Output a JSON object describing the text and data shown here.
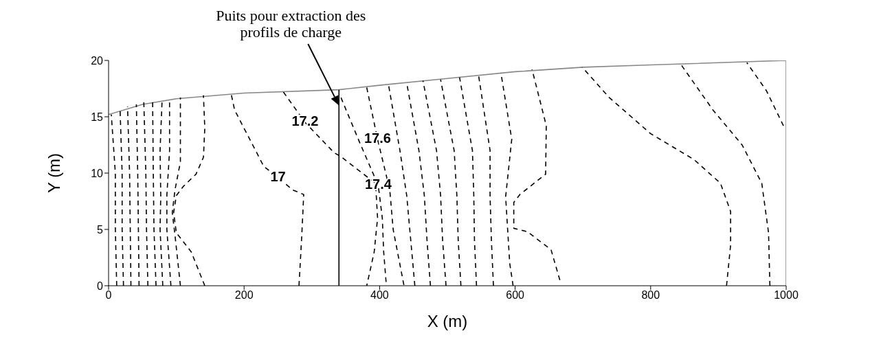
{
  "chart_data": {
    "type": "line",
    "xlabel": "X (m)",
    "ylabel": "Y (m)",
    "xlim": [
      0,
      1000
    ],
    "ylim": [
      0,
      20
    ],
    "xticks": [
      0,
      200,
      400,
      600,
      800,
      1000
    ],
    "yticks": [
      0,
      5,
      10,
      15,
      20
    ],
    "grid": false,
    "marker": "none",
    "annotations": [
      "Puits pour extraction des profils de charge",
      {
        "text": "17",
        "x": 250,
        "y": 9.6
      },
      {
        "text": "17.2",
        "x": 290,
        "y": 14.5
      },
      {
        "text": "17.6",
        "x": 397,
        "y": 13
      },
      {
        "text": "17.4",
        "x": 398,
        "y": 8.9
      }
    ],
    "series": [
      {
        "type": "line",
        "color": "#888888",
        "line_style": "solid",
        "x": [
          0,
          50,
          100,
          200,
          340,
          400,
          500,
          600,
          700,
          800,
          1000,
          1000
        ],
        "values": [
          15.2,
          16.1,
          16.6,
          17.1,
          17.4,
          17.8,
          18.4,
          19,
          19.4,
          19.6,
          20,
          0
        ]
      },
      {
        "type": "line",
        "color": "#000000",
        "line_style": "solid",
        "x": [
          340,
          340
        ],
        "values": [
          0,
          17.4
        ]
      },
      {
        "type": "line",
        "color": "#000000",
        "line_style": "dashed",
        "x": [
          12,
          10,
          10,
          4
        ],
        "values": [
          0,
          5,
          10,
          15.2
        ]
      },
      {
        "type": "line",
        "color": "#000000",
        "line_style": "dashed",
        "x": [
          22,
          20,
          20,
          17
        ],
        "values": [
          0,
          5,
          10,
          15.6
        ]
      },
      {
        "type": "line",
        "color": "#000000",
        "line_style": "dashed",
        "x": [
          33,
          32,
          31,
          28
        ],
        "values": [
          0,
          5,
          10,
          15.9
        ]
      },
      {
        "type": "line",
        "color": "#000000",
        "line_style": "dashed",
        "x": [
          45,
          44,
          43,
          41
        ],
        "values": [
          0,
          5,
          10,
          16.1
        ]
      },
      {
        "type": "line",
        "color": "#000000",
        "line_style": "dashed",
        "x": [
          58,
          56,
          55,
          52
        ],
        "values": [
          0,
          5,
          10,
          16.3
        ]
      },
      {
        "type": "line",
        "color": "#000000",
        "line_style": "dashed",
        "x": [
          70,
          67,
          66,
          65
        ],
        "values": [
          0,
          5,
          10,
          16.4
        ]
      },
      {
        "type": "line",
        "color": "#000000",
        "line_style": "dashed",
        "x": [
          80,
          76,
          77,
          76,
          79
        ],
        "values": [
          0,
          5,
          8,
          12,
          16.5
        ]
      },
      {
        "type": "line",
        "color": "#000000",
        "line_style": "dashed",
        "x": [
          92,
          86,
          86,
          90,
          90
        ],
        "values": [
          0,
          5,
          8,
          12,
          16.6
        ]
      },
      {
        "type": "line",
        "color": "#000000",
        "line_style": "dashed",
        "x": [
          106,
          98,
          94,
          98,
          106,
          106
        ],
        "values": [
          0,
          4.5,
          6.5,
          8.5,
          11,
          16.7
        ]
      },
      {
        "type": "line",
        "color": "#000000",
        "line_style": "dashed",
        "x": [
          142,
          122,
          100,
          96,
          100,
          110,
          129,
          140,
          142,
          140
        ],
        "values": [
          0,
          3,
          4.7,
          6.5,
          8,
          8.8,
          9.9,
          11.4,
          14,
          16.9
        ]
      },
      {
        "type": "line",
        "color": "#000000",
        "line_style": "dashed",
        "x": [
          281,
          285,
          288,
          272,
          250,
          229,
          186,
          181
        ],
        "values": [
          0,
          4.3,
          8.1,
          8.5,
          9.6,
          10.6,
          15.6,
          17
        ]
      },
      {
        "type": "line",
        "color": "#000000",
        "line_style": "dashed",
        "x": [
          258,
          290,
          333,
          342,
          370,
          394,
          397,
          392,
          381
        ],
        "values": [
          17.2,
          14.5,
          11.8,
          11.5,
          10.2,
          9.1,
          6,
          3,
          0
        ]
      },
      {
        "type": "line",
        "color": "#000000",
        "line_style": "dashed",
        "x": [
          343,
          370,
          398,
          404,
          406,
          410
        ],
        "values": [
          16.7,
          12.8,
          8.9,
          6,
          3,
          0
        ]
      },
      {
        "type": "line",
        "color": "#000000",
        "line_style": "dashed",
        "x": [
          381,
          397,
          415,
          420,
          436
        ],
        "values": [
          17.6,
          13,
          8.5,
          5,
          0
        ]
      },
      {
        "type": "line",
        "color": "#000000",
        "line_style": "dashed",
        "x": [
          452,
          446,
          440,
          430,
          413
        ],
        "values": [
          0,
          4,
          8,
          12,
          17.9
        ]
      },
      {
        "type": "line",
        "color": "#000000",
        "line_style": "dashed",
        "x": [
          475,
          470,
          466,
          458,
          440
        ],
        "values": [
          0,
          4,
          8,
          12,
          18
        ]
      },
      {
        "type": "line",
        "color": "#000000",
        "line_style": "dashed",
        "x": [
          498,
          493,
          490,
          484,
          464
        ],
        "values": [
          0,
          4,
          8,
          12,
          18.2
        ]
      },
      {
        "type": "line",
        "color": "#000000",
        "line_style": "dashed",
        "x": [
          520,
          516,
          514,
          510,
          490
        ],
        "values": [
          0,
          4,
          8,
          12,
          18.3
        ]
      },
      {
        "type": "line",
        "color": "#000000",
        "line_style": "dashed",
        "x": [
          543,
          540,
          539,
          537,
          518
        ],
        "values": [
          0,
          4,
          8,
          12,
          18.5
        ]
      },
      {
        "type": "line",
        "color": "#000000",
        "line_style": "dashed",
        "x": [
          568,
          565,
          563,
          563,
          546
        ],
        "values": [
          0,
          4,
          8,
          12,
          18.7
        ]
      },
      {
        "type": "line",
        "color": "#000000",
        "line_style": "dashed",
        "x": [
          597,
          592,
          586,
          595,
          579
        ],
        "values": [
          0,
          2,
          7.9,
          13,
          18.9
        ]
      },
      {
        "type": "line",
        "color": "#000000",
        "line_style": "dashed",
        "x": [
          666,
          653,
          618,
          598,
          598,
          607,
          645,
          646,
          625
        ],
        "values": [
          0.5,
          3.2,
          4.8,
          5.1,
          7.4,
          8.1,
          9.9,
          14.2,
          19.2
        ]
      },
      {
        "type": "line",
        "color": "#000000",
        "line_style": "dashed",
        "x": [
          912,
          918,
          918,
          903,
          864,
          800,
          739,
          699
        ],
        "values": [
          0,
          3.6,
          6.6,
          9.1,
          11.2,
          13.5,
          16.7,
          19.4
        ]
      },
      {
        "type": "line",
        "color": "#000000",
        "line_style": "dashed",
        "x": [
          976,
          974,
          964,
          935,
          892,
          844
        ],
        "values": [
          0,
          4.7,
          9.1,
          12.5,
          15.6,
          19.7
        ]
      },
      {
        "type": "line",
        "color": "#000000",
        "line_style": "dashed",
        "x": [
          996,
          971,
          942
        ],
        "values": [
          14.2,
          17.3,
          19.8
        ]
      }
    ]
  }
}
